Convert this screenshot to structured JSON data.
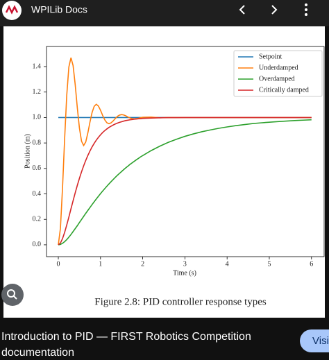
{
  "header": {
    "title": "WPILib Docs"
  },
  "chart_data": {
    "type": "line",
    "x": [
      0,
      0.05,
      0.1,
      0.15,
      0.2,
      0.25,
      0.3,
      0.35,
      0.4,
      0.45,
      0.5,
      0.55,
      0.6,
      0.65,
      0.7,
      0.75,
      0.8,
      0.85,
      0.9,
      0.95,
      1,
      1.05,
      1.1,
      1.15,
      1.2,
      1.25,
      1.3,
      1.35,
      1.4,
      1.45,
      1.5,
      1.55,
      1.6,
      1.65,
      1.7,
      1.75,
      1.8,
      1.85,
      1.9,
      1.95,
      2,
      2.2,
      2.4,
      2.6,
      2.8,
      3,
      3.2,
      3.4,
      3.6,
      3.8,
      4,
      4.2,
      4.4,
      4.6,
      4.8,
      5,
      5.2,
      5.4,
      5.6,
      5.8,
      6
    ],
    "series": [
      {
        "name": "Setpoint",
        "color": "#1f77b4",
        "values": [
          1,
          1,
          1,
          1,
          1,
          1,
          1,
          1,
          1,
          1,
          1,
          1,
          1,
          1,
          1,
          1,
          1,
          1,
          1,
          1,
          1,
          1,
          1,
          1,
          1,
          1,
          1,
          1,
          1,
          1,
          1,
          1,
          1,
          1,
          1,
          1,
          1,
          1,
          1,
          1,
          1,
          1,
          1,
          1,
          1,
          1,
          1,
          1,
          1,
          1,
          1,
          1,
          1,
          1,
          1,
          1,
          1,
          1,
          1,
          1,
          1
        ]
      },
      {
        "name": "Underdamped",
        "color": "#ff7f0e",
        "values": [
          0,
          0.13,
          0.449,
          0.835,
          1.176,
          1.397,
          1.47,
          1.408,
          1.259,
          1.077,
          0.917,
          0.814,
          0.78,
          0.808,
          0.879,
          0.964,
          1.039,
          1.088,
          1.104,
          1.09,
          1.057,
          1.017,
          0.982,
          0.959,
          0.951,
          0.958,
          0.973,
          0.992,
          1.009,
          1.019,
          1.023,
          1.02,
          1.013,
          1.004,
          0.996,
          0.991,
          0.989,
          0.991,
          0.994,
          0.998,
          1.002,
          1.003,
          0.998,
          1,
          1,
          1,
          1,
          1,
          1,
          1,
          1,
          1,
          1,
          1,
          1,
          1,
          1,
          1,
          1,
          1,
          1
        ]
      },
      {
        "name": "Overdamped",
        "color": "#2ca02c",
        "values": [
          0,
          0.003,
          0.012,
          0.025,
          0.041,
          0.06,
          0.081,
          0.104,
          0.127,
          0.15,
          0.175,
          0.199,
          0.223,
          0.247,
          0.27,
          0.293,
          0.316,
          0.338,
          0.36,
          0.381,
          0.402,
          0.422,
          0.441,
          0.46,
          0.478,
          0.496,
          0.513,
          0.53,
          0.546,
          0.561,
          0.576,
          0.591,
          0.605,
          0.618,
          0.632,
          0.644,
          0.656,
          0.668,
          0.679,
          0.691,
          0.701,
          0.74,
          0.774,
          0.804,
          0.829,
          0.852,
          0.871,
          0.888,
          0.902,
          0.915,
          0.926,
          0.936,
          0.944,
          0.952,
          0.958,
          0.963,
          0.968,
          0.972,
          0.976,
          0.979,
          0.982
        ]
      },
      {
        "name": "Critically damped",
        "color": "#d62728",
        "values": [
          0,
          0.014,
          0.049,
          0.098,
          0.156,
          0.218,
          0.283,
          0.346,
          0.408,
          0.467,
          0.522,
          0.573,
          0.62,
          0.663,
          0.702,
          0.737,
          0.769,
          0.797,
          0.822,
          0.844,
          0.864,
          0.882,
          0.897,
          0.91,
          0.922,
          0.932,
          0.941,
          0.949,
          0.956,
          0.962,
          0.967,
          0.972,
          0.976,
          0.979,
          0.982,
          0.984,
          0.987,
          0.988,
          0.99,
          0.991,
          0.993,
          0.996,
          0.998,
          0.999,
          0.999,
          1,
          1,
          1,
          1,
          1,
          1,
          1,
          1,
          1,
          1,
          1,
          1,
          1,
          1,
          1,
          1
        ]
      }
    ],
    "xlabel": "Time (s)",
    "ylabel": "Position (m)",
    "xlim": [
      -0.28,
      6.3
    ],
    "ylim": [
      -0.093,
      1.558
    ],
    "xticks": [
      0,
      1,
      2,
      3,
      4,
      5,
      6
    ],
    "yticks": [
      {
        "value": 0,
        "label": "0.0"
      },
      {
        "value": 0.2,
        "label": "0.2"
      },
      {
        "value": 0.4,
        "label": "0.4"
      },
      {
        "value": 0.6,
        "label": "0.6"
      },
      {
        "value": 0.8,
        "label": "0.8"
      },
      {
        "value": 1,
        "label": "1.0"
      },
      {
        "value": 1.2,
        "label": "1.2"
      },
      {
        "value": 1.4,
        "label": "1.4"
      }
    ],
    "legend": "upper right"
  },
  "caption": "Figure 2.8: PID controller response types",
  "footer": {
    "title": "Introduction to PID — FIRST Robotics Competition documentation",
    "button": "Visit"
  }
}
